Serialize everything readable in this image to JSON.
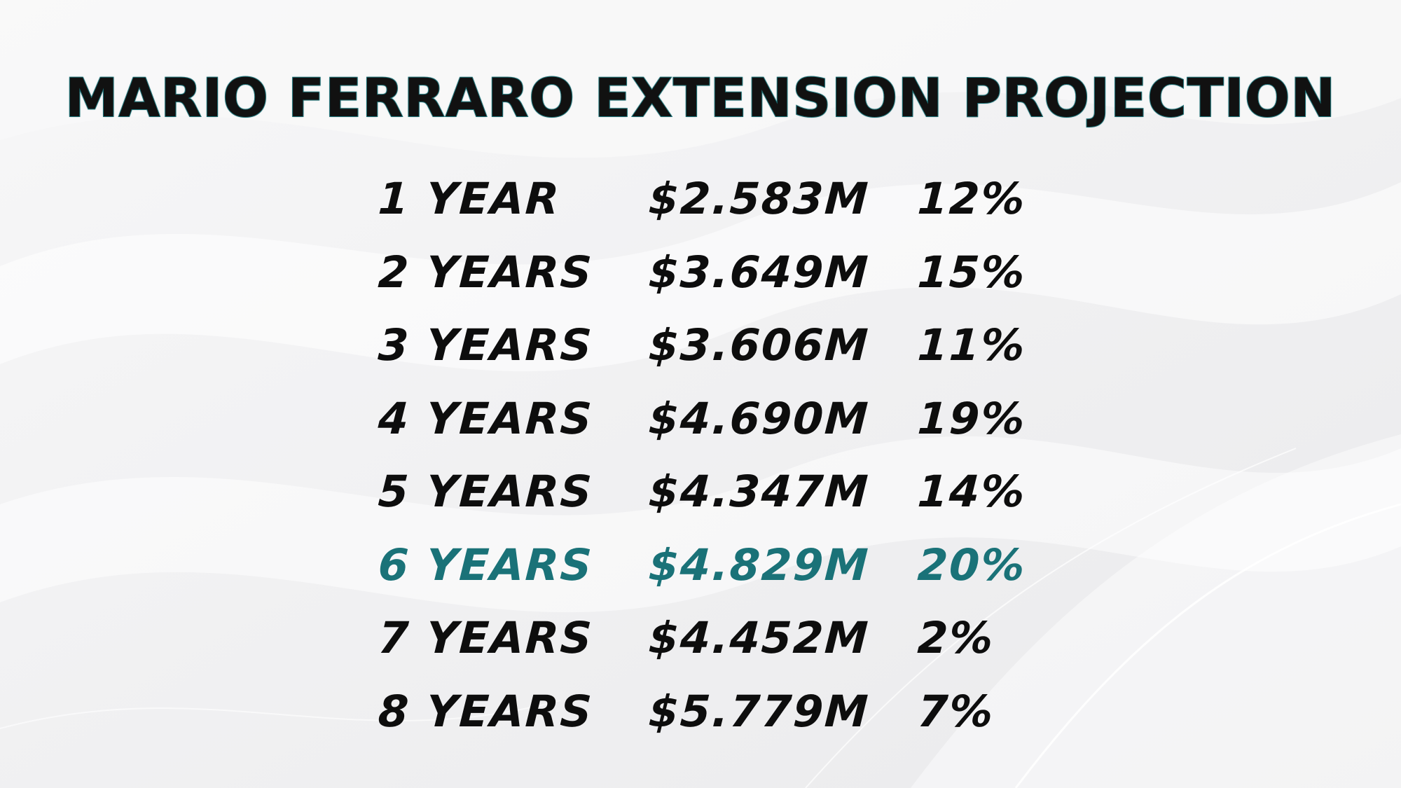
{
  "title": "MARIO FERRARO EXTENSION PROJECTION",
  "colors": {
    "text": "#0d0d0d",
    "highlight": "#1a7278",
    "title_outline": "#1b6f74",
    "background": "#f2f2f3"
  },
  "rows": [
    {
      "term": "1 YEAR",
      "value": "$2.583M",
      "percent": "12%",
      "highlight": false
    },
    {
      "term": "2 YEARS",
      "value": "$3.649M",
      "percent": "15%",
      "highlight": false
    },
    {
      "term": "3 YEARS",
      "value": "$3.606M",
      "percent": "11%",
      "highlight": false
    },
    {
      "term": "4 YEARS",
      "value": "$4.690M",
      "percent": "19%",
      "highlight": false
    },
    {
      "term": "5 YEARS",
      "value": "$4.347M",
      "percent": "14%",
      "highlight": false
    },
    {
      "term": "6 YEARS",
      "value": "$4.829M",
      "percent": "20%",
      "highlight": true
    },
    {
      "term": "7 YEARS",
      "value": "$4.452M",
      "percent": "2%",
      "highlight": false
    },
    {
      "term": "8 YEARS",
      "value": "$5.779M",
      "percent": "7%",
      "highlight": false
    }
  ]
}
